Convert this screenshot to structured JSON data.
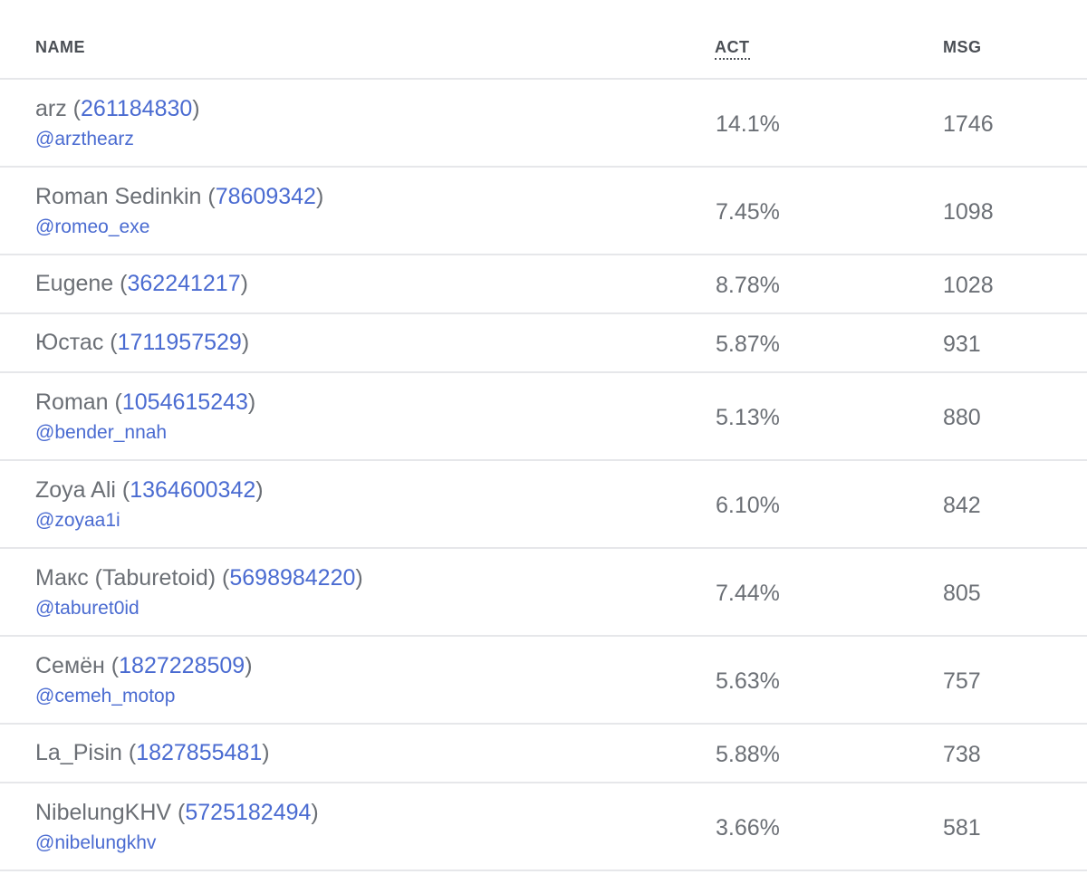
{
  "columns": {
    "name": "NAME",
    "act": "ACT",
    "msg": "MSG"
  },
  "rows": [
    {
      "name": "arz",
      "id": "261184830",
      "handle": "@arzthearz",
      "act": "14.1%",
      "msg": "1746"
    },
    {
      "name": "Roman Sedinkin",
      "id": "78609342",
      "handle": "@romeo_exe",
      "act": "7.45%",
      "msg": "1098"
    },
    {
      "name": "Eugene",
      "id": "362241217",
      "handle": "",
      "act": "8.78%",
      "msg": "1028"
    },
    {
      "name": "Юстас",
      "id": "1711957529",
      "handle": "",
      "act": "5.87%",
      "msg": "931"
    },
    {
      "name": "Roman",
      "id": "1054615243",
      "handle": "@bender_nnah",
      "act": "5.13%",
      "msg": "880"
    },
    {
      "name": "Zoya Ali",
      "id": "1364600342",
      "handle": "@zoyaa1i",
      "act": "6.10%",
      "msg": "842"
    },
    {
      "name": "Макс (Taburetoid)",
      "id": "5698984220",
      "handle": "@taburet0id",
      "act": "7.44%",
      "msg": "805"
    },
    {
      "name": "Семён",
      "id": "1827228509",
      "handle": "@cemeh_motop",
      "act": "5.63%",
      "msg": "757"
    },
    {
      "name": "La_Pisin",
      "id": "1827855481",
      "handle": "",
      "act": "5.88%",
      "msg": "738"
    },
    {
      "name": "NibelungKHV",
      "id": "5725182494",
      "handle": "@nibelungkhv",
      "act": "3.66%",
      "msg": "581"
    }
  ]
}
